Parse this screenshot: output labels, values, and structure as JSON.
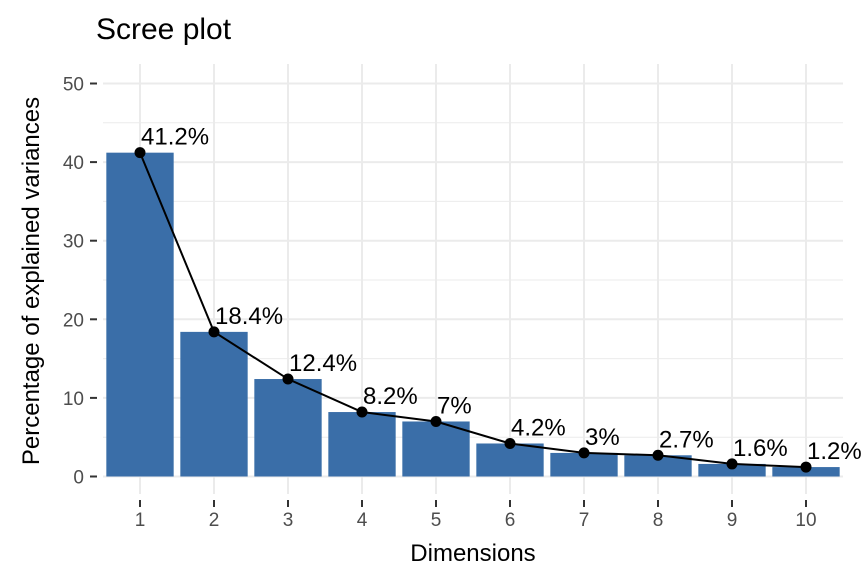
{
  "chart_data": {
    "type": "bar",
    "title": "Scree plot",
    "xlabel": "Dimensions",
    "ylabel": "Percentage of explained variances",
    "categories": [
      "1",
      "2",
      "3",
      "4",
      "5",
      "6",
      "7",
      "8",
      "9",
      "10"
    ],
    "values": [
      41.2,
      18.4,
      12.4,
      8.2,
      7.0,
      4.2,
      3.0,
      2.7,
      1.6,
      1.2
    ],
    "data_labels": [
      "41.2%",
      "18.4%",
      "12.4%",
      "8.2%",
      "7%",
      "4.2%",
      "3%",
      "2.7%",
      "1.6%",
      "1.2%"
    ],
    "bar_heights": [
      41.2,
      18.4,
      12.4,
      8.2,
      7.0,
      4.2,
      3.0,
      2.7,
      1.6,
      1.2
    ],
    "yticks": [
      "0",
      "10",
      "20",
      "30",
      "40",
      "50"
    ],
    "ylim": [
      0,
      50
    ],
    "line_overlay": true,
    "grid": true,
    "bar_color": "#3a6ea8",
    "line_color": "#000000",
    "panel_background": "#ffffff",
    "grid_color": "#ebebeb"
  }
}
